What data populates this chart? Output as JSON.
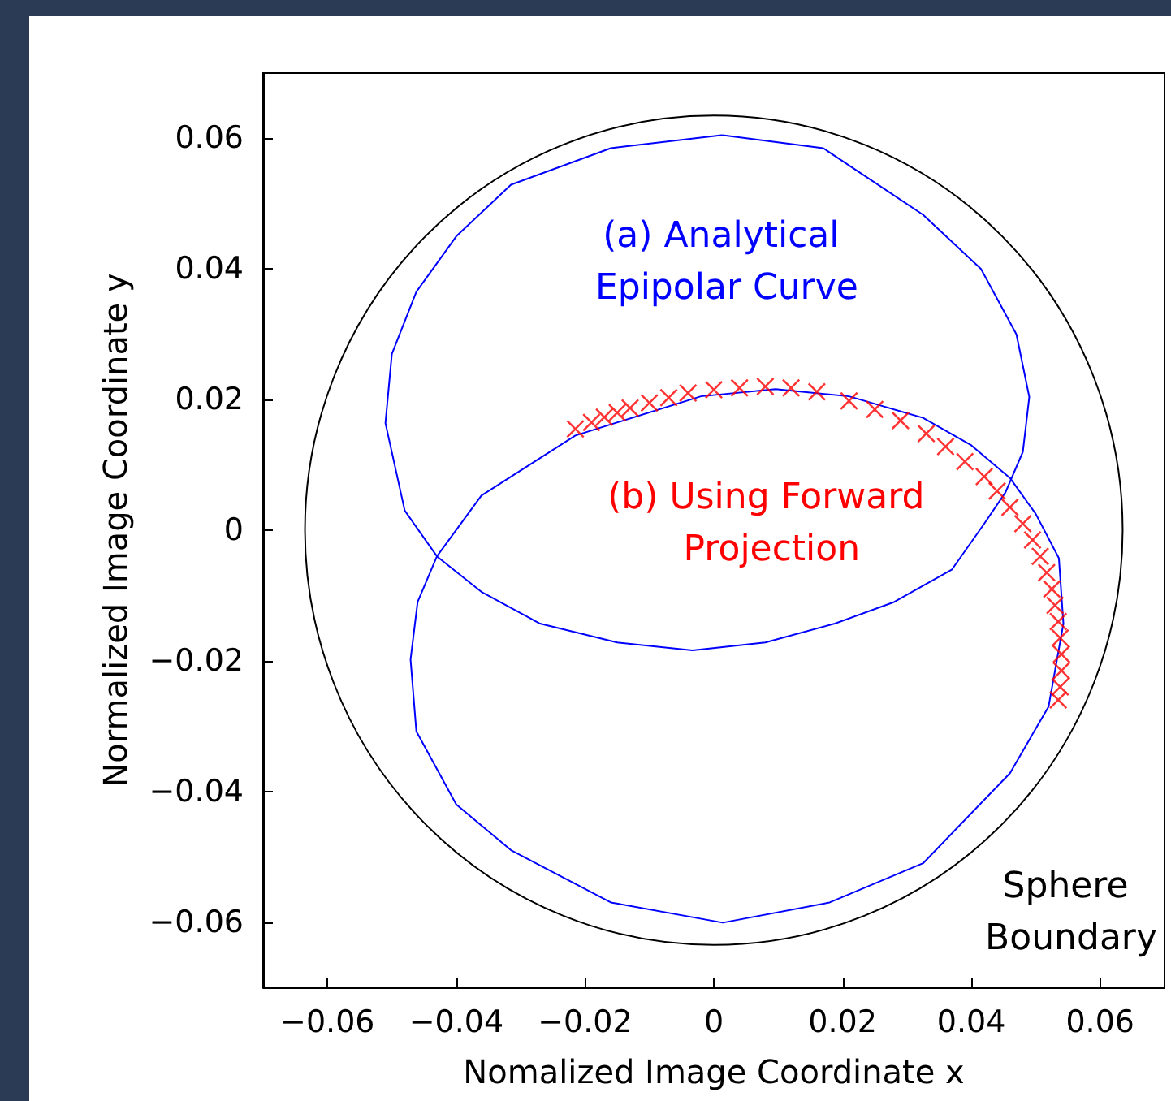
{
  "chart_data": {
    "type": "line",
    "xlabel": "Nomalized Image Coordinate x",
    "ylabel": "Normalized Image Coordinate y",
    "xlim": [
      -0.07,
      0.07
    ],
    "ylim": [
      -0.07,
      0.07
    ],
    "xticks": [
      {
        "value": -0.06,
        "label": "−0.06"
      },
      {
        "value": -0.04,
        "label": "−0.04"
      },
      {
        "value": -0.02,
        "label": "−0.02"
      },
      0,
      0.02,
      0.04,
      0.06
    ],
    "yticks": [
      {
        "value": -0.06,
        "label": "−0.06"
      },
      {
        "value": -0.04,
        "label": "−0.04"
      },
      {
        "value": -0.02,
        "label": "−0.02"
      },
      0,
      0.02,
      0.04,
      0.06
    ],
    "grid": false,
    "legend": false,
    "marker": "none",
    "line_style": "solid",
    "annotations": [
      "Sphere Boundary"
    ],
    "series": [
      {
        "name": "(a) Analytical Epipolar Curve",
        "color": "#0000ff",
        "x": [
          0.0014,
          0.017,
          0.0325,
          0.0415,
          0.047,
          0.049,
          0.048,
          0.0453,
          0.042,
          0.037,
          0.028,
          0.0188,
          0.008,
          -0.0033,
          -0.015,
          -0.027,
          -0.036,
          -0.043,
          -0.046,
          -0.0471,
          -0.0462,
          -0.04,
          -0.0315,
          -0.016,
          0.0014,
          0.018,
          0.0325,
          0.046,
          0.052,
          0.0543,
          0.0536,
          0.05,
          0.046,
          0.04,
          0.0325,
          0.021,
          0.0096,
          -0.002,
          -0.0215,
          -0.0361,
          -0.043,
          -0.048,
          -0.051,
          -0.05,
          -0.0462,
          -0.04,
          -0.0315,
          -0.016,
          0.0012
        ],
        "values": [
          0.0605,
          0.0585,
          0.0483,
          0.04,
          0.03,
          0.0204,
          0.012,
          0.0058,
          0.001,
          -0.006,
          -0.011,
          -0.0143,
          -0.0172,
          -0.0184,
          -0.0172,
          -0.0143,
          -0.0095,
          -0.004,
          -0.011,
          -0.0198,
          -0.0308,
          -0.042,
          -0.049,
          -0.057,
          -0.0601,
          -0.057,
          -0.051,
          -0.0372,
          -0.027,
          -0.0143,
          -0.0043,
          0.0025,
          0.008,
          0.013,
          0.0172,
          0.0205,
          0.0216,
          0.0205,
          0.0145,
          0.0053,
          -0.004,
          0.003,
          0.0164,
          0.027,
          0.0365,
          0.045,
          0.0529,
          0.0585,
          0.0605
        ]
      },
      {
        "name": "(b) Using Forward Projection",
        "color": "#ff0000",
        "type": "scatter",
        "marker": "cross",
        "x": [
          -0.0215,
          -0.019,
          -0.017,
          -0.015,
          -0.013,
          -0.01,
          -0.007,
          -0.004,
          0,
          0.004,
          0.008,
          0.012,
          0.016,
          0.021,
          0.025,
          0.029,
          0.033,
          0.036,
          0.039,
          0.042,
          0.044,
          0.046,
          0.048,
          0.0495,
          0.0507,
          0.0517,
          0.0525,
          0.053,
          0.0535,
          0.0538,
          0.054,
          0.054,
          0.0538,
          0.0535
        ],
        "values": [
          0.0155,
          0.0165,
          0.0173,
          0.018,
          0.0187,
          0.0195,
          0.0203,
          0.021,
          0.0215,
          0.0218,
          0.022,
          0.0218,
          0.0212,
          0.0198,
          0.0185,
          0.0168,
          0.0148,
          0.0128,
          0.0105,
          0.0082,
          0.006,
          0.0035,
          0.001,
          -0.0015,
          -0.004,
          -0.0065,
          -0.009,
          -0.0115,
          -0.014,
          -0.0165,
          -0.019,
          -0.0215,
          -0.024,
          -0.026
        ]
      }
    ]
  }
}
